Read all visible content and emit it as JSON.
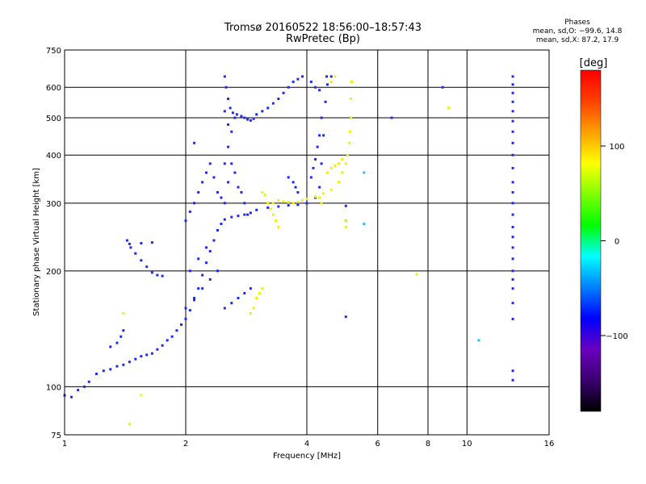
{
  "header": {
    "title_line1": "Tromsø 20160522 18:56:00–18:57:43",
    "title_line2": "RwPretec (Bp)",
    "stats_title": "Phases",
    "stats_line1": "mean, sd,O: −99.6, 14.8",
    "stats_line2": "mean, sd,X:  87.2, 17.9"
  },
  "colorbar": {
    "label": "[deg]",
    "ticks": [
      "100",
      "0",
      "−100"
    ],
    "tick_values": [
      100,
      0,
      -100
    ],
    "range": [
      -180,
      180
    ],
    "colors": [
      "#000000",
      "#3a0070",
      "#6a00c0",
      "#0000ff",
      "#0080ff",
      "#00ffff",
      "#00ff00",
      "#80ff00",
      "#ffff00",
      "#ffa000",
      "#ff4000",
      "#ff0000"
    ]
  },
  "chart_data": {
    "type": "scatter",
    "xlabel": "Frequency [MHz]",
    "ylabel": "Stationary phase Virtual Height [km]",
    "xscale": "log",
    "yscale": "log",
    "xlim": [
      1,
      16
    ],
    "ylim": [
      75,
      750
    ],
    "xticks": [
      1,
      2,
      4,
      6,
      8,
      10,
      16
    ],
    "xtick_labels": [
      "1",
      "2",
      "4",
      "6",
      "8",
      "10",
      "16"
    ],
    "yticks": [
      75,
      100,
      200,
      300,
      400,
      500,
      600,
      750
    ],
    "ytick_labels": [
      "75",
      "100",
      "200",
      "300",
      "400",
      "500",
      "600",
      "750"
    ],
    "grid": true,
    "series": [
      {
        "mode": "O",
        "color": "#1b2cf0",
        "values": [
          [
            1.0,
            95
          ],
          [
            1.04,
            94
          ],
          [
            1.08,
            98
          ],
          [
            1.12,
            100
          ],
          [
            1.15,
            103
          ],
          [
            1.2,
            108
          ],
          [
            1.25,
            110
          ],
          [
            1.3,
            111
          ],
          [
            1.35,
            113
          ],
          [
            1.4,
            114
          ],
          [
            1.45,
            116
          ],
          [
            1.5,
            118
          ],
          [
            1.55,
            120
          ],
          [
            1.6,
            121
          ],
          [
            1.65,
            122
          ],
          [
            1.7,
            125
          ],
          [
            1.75,
            128
          ],
          [
            1.8,
            132
          ],
          [
            1.85,
            135
          ],
          [
            1.9,
            140
          ],
          [
            1.95,
            145
          ],
          [
            2.0,
            150
          ],
          [
            2.05,
            158
          ],
          [
            2.1,
            168
          ],
          [
            2.15,
            180
          ],
          [
            2.2,
            195
          ],
          [
            2.25,
            210
          ],
          [
            2.3,
            225
          ],
          [
            2.35,
            240
          ],
          [
            2.4,
            255
          ],
          [
            2.45,
            265
          ],
          [
            2.5,
            272
          ],
          [
            2.6,
            276
          ],
          [
            2.7,
            278
          ],
          [
            2.8,
            280
          ],
          [
            2.9,
            283
          ],
          [
            3.0,
            288
          ],
          [
            3.2,
            292
          ],
          [
            3.4,
            294
          ],
          [
            3.6,
            296
          ],
          [
            3.8,
            297
          ],
          [
            4.0,
            300
          ],
          [
            4.2,
            310
          ],
          [
            4.3,
            330
          ],
          [
            4.35,
            380
          ],
          [
            4.4,
            450
          ],
          [
            4.45,
            550
          ],
          [
            4.48,
            640
          ],
          [
            1.3,
            127
          ],
          [
            1.35,
            130
          ],
          [
            1.38,
            135
          ],
          [
            1.4,
            140
          ],
          [
            1.43,
            240
          ],
          [
            1.46,
            230
          ],
          [
            1.5,
            222
          ],
          [
            1.55,
            213
          ],
          [
            1.6,
            205
          ],
          [
            1.65,
            198
          ],
          [
            1.7,
            195
          ],
          [
            1.75,
            194
          ],
          [
            1.45,
            235
          ],
          [
            1.55,
            236
          ],
          [
            1.65,
            237
          ],
          [
            2.0,
            270
          ],
          [
            2.05,
            285
          ],
          [
            2.1,
            300
          ],
          [
            2.1,
            430
          ],
          [
            2.15,
            320
          ],
          [
            2.2,
            340
          ],
          [
            2.25,
            360
          ],
          [
            2.3,
            380
          ],
          [
            2.35,
            350
          ],
          [
            2.4,
            320
          ],
          [
            2.45,
            310
          ],
          [
            2.5,
            300
          ],
          [
            2.55,
            340
          ],
          [
            2.6,
            380
          ],
          [
            2.65,
            360
          ],
          [
            2.7,
            330
          ],
          [
            2.75,
            320
          ],
          [
            2.8,
            300
          ],
          [
            2.85,
            280
          ],
          [
            2.5,
            640
          ],
          [
            2.52,
            600
          ],
          [
            2.55,
            560
          ],
          [
            2.58,
            530
          ],
          [
            2.62,
            515
          ],
          [
            2.68,
            510
          ],
          [
            2.75,
            505
          ],
          [
            2.8,
            500
          ],
          [
            2.85,
            495
          ],
          [
            2.9,
            492
          ],
          [
            2.95,
            497
          ],
          [
            3.0,
            510
          ],
          [
            3.1,
            520
          ],
          [
            3.2,
            530
          ],
          [
            3.3,
            545
          ],
          [
            3.4,
            560
          ],
          [
            3.5,
            580
          ],
          [
            3.6,
            600
          ],
          [
            3.7,
            620
          ],
          [
            3.8,
            630
          ],
          [
            3.9,
            640
          ],
          [
            2.5,
            380
          ],
          [
            2.55,
            420
          ],
          [
            2.6,
            460
          ],
          [
            2.65,
            500
          ],
          [
            2.5,
            520
          ],
          [
            2.55,
            480
          ],
          [
            2.5,
            160
          ],
          [
            2.6,
            165
          ],
          [
            2.7,
            170
          ],
          [
            2.8,
            175
          ],
          [
            2.9,
            180
          ],
          [
            2.0,
            160
          ],
          [
            2.1,
            170
          ],
          [
            2.2,
            180
          ],
          [
            2.3,
            190
          ],
          [
            2.4,
            200
          ],
          [
            2.05,
            200
          ],
          [
            2.15,
            215
          ],
          [
            2.25,
            230
          ],
          [
            4.5,
            610
          ],
          [
            4.6,
            640
          ],
          [
            4.1,
            620
          ],
          [
            4.2,
            600
          ],
          [
            4.3,
            590
          ],
          [
            4.35,
            500
          ],
          [
            4.3,
            450
          ],
          [
            4.25,
            420
          ],
          [
            4.2,
            390
          ],
          [
            4.15,
            370
          ],
          [
            4.1,
            350
          ],
          [
            3.6,
            350
          ],
          [
            3.7,
            340
          ],
          [
            3.75,
            330
          ],
          [
            3.8,
            320
          ],
          [
            5.0,
            295
          ],
          [
            5.0,
            270
          ],
          [
            5.0,
            152
          ],
          [
            6.5,
            500
          ],
          [
            8.7,
            600
          ],
          [
            13.0,
            640
          ],
          [
            13.0,
            610
          ],
          [
            13.0,
            580
          ],
          [
            13.0,
            550
          ],
          [
            13.0,
            520
          ],
          [
            13.0,
            490
          ],
          [
            13.0,
            460
          ],
          [
            13.0,
            430
          ],
          [
            13.0,
            400
          ],
          [
            13.0,
            370
          ],
          [
            13.0,
            340
          ],
          [
            13.0,
            320
          ],
          [
            13.0,
            300
          ],
          [
            13.0,
            280
          ],
          [
            13.0,
            260
          ],
          [
            13.0,
            245
          ],
          [
            13.0,
            230
          ],
          [
            13.0,
            215
          ],
          [
            13.0,
            200
          ],
          [
            13.0,
            190
          ],
          [
            13.0,
            180
          ],
          [
            13.0,
            165
          ],
          [
            13.0,
            150
          ],
          [
            13.0,
            110
          ],
          [
            13.0,
            104
          ]
        ]
      },
      {
        "mode": "X",
        "color": "#f0f000",
        "values": [
          [
            3.3,
            300
          ],
          [
            3.4,
            305
          ],
          [
            3.5,
            303
          ],
          [
            3.6,
            302
          ],
          [
            3.7,
            300
          ],
          [
            3.8,
            302
          ],
          [
            3.9,
            305
          ],
          [
            4.0,
            308
          ],
          [
            4.2,
            312
          ],
          [
            4.4,
            318
          ],
          [
            4.6,
            325
          ],
          [
            4.8,
            340
          ],
          [
            4.9,
            360
          ],
          [
            5.0,
            380
          ],
          [
            5.05,
            400
          ],
          [
            5.1,
            430
          ],
          [
            5.12,
            460
          ],
          [
            5.15,
            500
          ],
          [
            5.15,
            560
          ],
          [
            5.17,
            620
          ],
          [
            4.5,
            360
          ],
          [
            4.6,
            370
          ],
          [
            4.7,
            375
          ],
          [
            4.8,
            380
          ],
          [
            4.9,
            390
          ],
          [
            3.1,
            320
          ],
          [
            3.15,
            315
          ],
          [
            3.2,
            300
          ],
          [
            3.25,
            290
          ],
          [
            3.3,
            280
          ],
          [
            3.35,
            270
          ],
          [
            3.4,
            260
          ],
          [
            3.0,
            170
          ],
          [
            3.05,
            175
          ],
          [
            3.1,
            180
          ],
          [
            2.9,
            155
          ],
          [
            2.95,
            160
          ],
          [
            4.6,
            620
          ],
          [
            4.7,
            640
          ],
          [
            4.3,
            310
          ],
          [
            4.35,
            300
          ],
          [
            5.0,
            270
          ],
          [
            5.0,
            260
          ],
          [
            7.5,
            196
          ],
          [
            9.0,
            530
          ],
          [
            1.4,
            155
          ],
          [
            1.45,
            80
          ],
          [
            1.55,
            95
          ]
        ]
      },
      {
        "mode": "other",
        "color": "#20c0ff",
        "values": [
          [
            5.55,
            360
          ],
          [
            5.55,
            265
          ],
          [
            10.7,
            132
          ]
        ]
      }
    ]
  }
}
